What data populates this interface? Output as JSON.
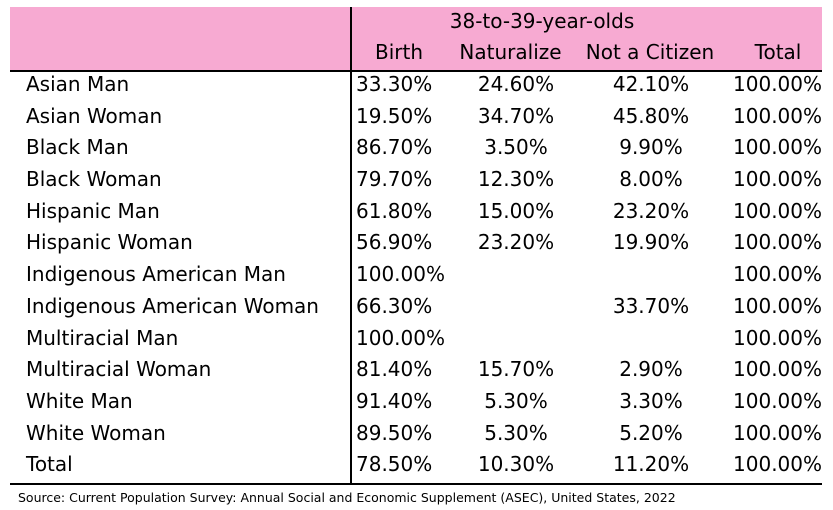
{
  "table": {
    "group_header": "38-to-39-year-olds",
    "columns": [
      "Birth",
      "Naturalize",
      "Not a Citizen",
      "Total"
    ],
    "rows": [
      {
        "label": "Asian Man",
        "birth": "33.30%",
        "naturalize": "24.60%",
        "not_citizen": "42.10%",
        "total": "100.00%"
      },
      {
        "label": "Asian Woman",
        "birth": "19.50%",
        "naturalize": "34.70%",
        "not_citizen": "45.80%",
        "total": "100.00%"
      },
      {
        "label": "Black Man",
        "birth": "86.70%",
        "naturalize": "3.50%",
        "not_citizen": "9.90%",
        "total": "100.00%"
      },
      {
        "label": "Black Woman",
        "birth": "79.70%",
        "naturalize": "12.30%",
        "not_citizen": "8.00%",
        "total": "100.00%"
      },
      {
        "label": "Hispanic Man",
        "birth": "61.80%",
        "naturalize": "15.00%",
        "not_citizen": "23.20%",
        "total": "100.00%"
      },
      {
        "label": "Hispanic Woman",
        "birth": "56.90%",
        "naturalize": "23.20%",
        "not_citizen": "19.90%",
        "total": "100.00%"
      },
      {
        "label": "Indigenous American Man",
        "birth": "100.00%",
        "naturalize": "",
        "not_citizen": "",
        "total": "100.00%"
      },
      {
        "label": "Indigenous American Woman",
        "birth": "66.30%",
        "naturalize": "",
        "not_citizen": "33.70%",
        "total": "100.00%"
      },
      {
        "label": "Multiracial Man",
        "birth": "100.00%",
        "naturalize": "",
        "not_citizen": "",
        "total": "100.00%"
      },
      {
        "label": "Multiracial Woman",
        "birth": "81.40%",
        "naturalize": "15.70%",
        "not_citizen": "2.90%",
        "total": "100.00%"
      },
      {
        "label": "White Man",
        "birth": "91.40%",
        "naturalize": "5.30%",
        "not_citizen": "3.30%",
        "total": "100.00%"
      },
      {
        "label": "White Woman",
        "birth": "89.50%",
        "naturalize": "5.30%",
        "not_citizen": "5.20%",
        "total": "100.00%"
      },
      {
        "label": "Total",
        "birth": "78.50%",
        "naturalize": "10.30%",
        "not_citizen": "11.20%",
        "total": "100.00%"
      }
    ]
  },
  "source": "Source: Current Population Survey: Annual Social and Economic Supplement (ASEC), United States, 2022",
  "colors": {
    "header_background": "#f7aad2",
    "rule": "#000000"
  }
}
